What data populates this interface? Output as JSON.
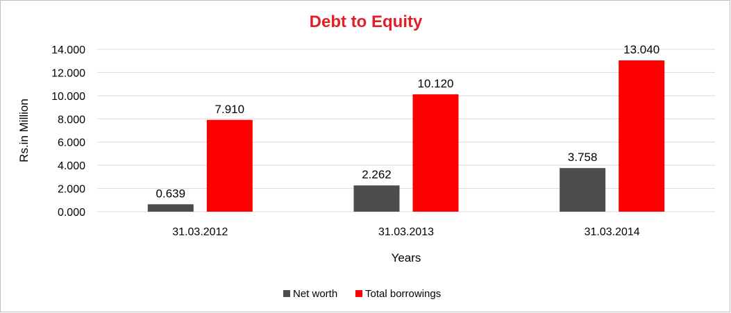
{
  "chart_data": {
    "type": "bar",
    "title": "Debt to Equity",
    "xlabel": "Years",
    "ylabel": "Rs.in Million",
    "categories": [
      "31.03.2012",
      "31.03.2013",
      "31.03.2014"
    ],
    "series": [
      {
        "name": "Net worth",
        "values": [
          0.639,
          2.262,
          3.758
        ],
        "labels": [
          "0.639",
          "2.262",
          "3.758"
        ],
        "color": "#4d4d4d"
      },
      {
        "name": "Total borrowings",
        "values": [
          7.91,
          10.12,
          13.04
        ],
        "labels": [
          "7.910",
          "10.120",
          "13.040"
        ],
        "color": "#ff0000"
      }
    ],
    "ylim": [
      0,
      14
    ],
    "yticks": [
      0,
      2,
      4,
      6,
      8,
      10,
      12,
      14
    ],
    "ytick_labels": [
      "0.000",
      "2.000",
      "4.000",
      "6.000",
      "8.000",
      "10.000",
      "12.000",
      "14.000"
    ],
    "grid": true,
    "legend_position": "bottom",
    "title_color": "#e31e24",
    "grid_color": "#d9d9d9",
    "border_color": "#bfbfbf"
  }
}
